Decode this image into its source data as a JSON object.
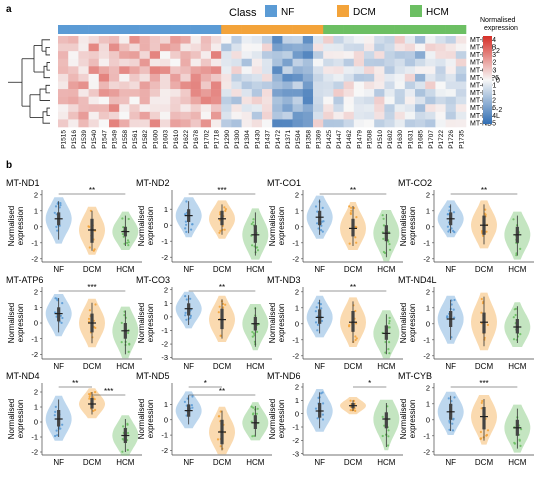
{
  "panel_a": {
    "label": "a",
    "legend": {
      "title": "Class",
      "items": [
        {
          "name": "NF",
          "color": "#5b9bd5"
        },
        {
          "name": "DCM",
          "color": "#f3a33a"
        },
        {
          "name": "HCM",
          "color": "#6cbf63"
        }
      ]
    },
    "colorbar": {
      "title_line1": "Normalised",
      "title_line2": "expression",
      "ticks": [
        "2",
        "0",
        "-2"
      ]
    }
  },
  "panel_b": {
    "label": "b"
  },
  "chart_data": {
    "heatmap": {
      "type": "heatmap",
      "rows": [
        "MT-ND4",
        "MT-CYB",
        "MT-ND3",
        "MT-CO2",
        "MT-CO3",
        "MT-ATP6",
        "MT-CO1",
        "MT-ND1",
        "MT-ND2",
        "MT-ND6",
        "MT-ND4L",
        "MT-ND5"
      ],
      "columns": [
        "P1515",
        "P1516",
        "P1539",
        "P1540",
        "P1547",
        "P1549",
        "P1558",
        "P1561",
        "P1582",
        "P1600",
        "P1603",
        "P1610",
        "P1622",
        "P1678",
        "P1702",
        "P1718",
        "P1290",
        "P1300",
        "P1304",
        "P1430",
        "P1437",
        "P1472",
        "P1371",
        "P1504",
        "P1358",
        "P1369",
        "P1425",
        "P1447",
        "P1462",
        "P1479",
        "P1508",
        "P1510",
        "P1602",
        "P1630",
        "P1631",
        "P1685",
        "P1707",
        "P1722",
        "P1726",
        "P1735"
      ],
      "column_classes": [
        "NF",
        "NF",
        "NF",
        "NF",
        "NF",
        "NF",
        "NF",
        "NF",
        "NF",
        "NF",
        "NF",
        "NF",
        "NF",
        "NF",
        "NF",
        "NF",
        "DCM",
        "DCM",
        "DCM",
        "DCM",
        "DCM",
        "DCM",
        "DCM",
        "DCM",
        "DCM",
        "DCM",
        "HCM",
        "HCM",
        "HCM",
        "HCM",
        "HCM",
        "HCM",
        "HCM",
        "HCM",
        "HCM",
        "HCM",
        "HCM",
        "HCM",
        "HCM",
        "HCM"
      ],
      "value_range": [
        -3,
        3
      ]
    },
    "violins": [
      {
        "type": "violin",
        "title": "MT-ND1",
        "categories": [
          "NF",
          "DCM",
          "HCM"
        ],
        "ylabel": "Normalised expression",
        "ylim": [
          -2.2,
          2.3
        ],
        "yticks": [
          -2,
          -1,
          0,
          1,
          2
        ],
        "medians": [
          0.5,
          -0.2,
          -0.3
        ],
        "q1": [
          0.1,
          -1.0,
          -0.6
        ],
        "q3": [
          0.9,
          0.5,
          0.0
        ],
        "mins": [
          -0.8,
          -1.5,
          -1.2
        ],
        "maxs": [
          1.6,
          1.0,
          0.7
        ],
        "significance": [
          {
            "pair": [
              0,
              2
            ],
            "label": "**"
          }
        ]
      },
      {
        "type": "violin",
        "title": "MT-ND2",
        "categories": [
          "NF",
          "DCM",
          "HCM"
        ],
        "ylabel": "Normalised expression",
        "ylim": [
          -2.3,
          2.2
        ],
        "yticks": [
          -2,
          -1,
          0,
          1
        ],
        "medians": [
          0.6,
          0.4,
          -0.6
        ],
        "q1": [
          0.2,
          0.0,
          -1.1
        ],
        "q3": [
          1.0,
          0.9,
          0.0
        ],
        "mins": [
          -0.5,
          -0.6,
          -1.9
        ],
        "maxs": [
          1.5,
          1.3,
          0.8
        ],
        "significance": [
          {
            "pair": [
              0,
              2
            ],
            "label": "***"
          }
        ]
      },
      {
        "type": "violin",
        "title": "MT-CO1",
        "categories": [
          "NF",
          "DCM",
          "HCM"
        ],
        "ylabel": "Normalised expression",
        "ylim": [
          -2.2,
          2.3
        ],
        "yticks": [
          -2,
          -1,
          0,
          1,
          2
        ],
        "medians": [
          0.6,
          -0.1,
          -0.4
        ],
        "q1": [
          0.1,
          -0.6,
          -0.9
        ],
        "q3": [
          1.0,
          0.5,
          0.1
        ],
        "mins": [
          -0.5,
          -1.2,
          -1.9
        ],
        "maxs": [
          1.7,
          1.3,
          0.8
        ],
        "significance": [
          {
            "pair": [
              0,
              2
            ],
            "label": "**"
          }
        ]
      },
      {
        "type": "violin",
        "title": "MT-CO2",
        "categories": [
          "NF",
          "DCM",
          "HCM"
        ],
        "ylabel": "Normalised expression",
        "ylim": [
          -2.2,
          2.3
        ],
        "yticks": [
          -2,
          -1,
          0,
          1,
          2
        ],
        "medians": [
          0.5,
          0.1,
          -0.5
        ],
        "q1": [
          0.1,
          -0.5,
          -1.0
        ],
        "q3": [
          0.9,
          0.7,
          0.0
        ],
        "mins": [
          -0.4,
          -1.1,
          -1.8
        ],
        "maxs": [
          1.4,
          1.4,
          0.7
        ],
        "significance": [
          {
            "pair": [
              0,
              2
            ],
            "label": "**"
          }
        ]
      },
      {
        "type": "violin",
        "title": "MT-ATP6",
        "categories": [
          "NF",
          "DCM",
          "HCM"
        ],
        "ylabel": "Normalised expression",
        "ylim": [
          -2.3,
          2.3
        ],
        "yticks": [
          -2,
          -1,
          0,
          1,
          2
        ],
        "medians": [
          0.6,
          0.0,
          -0.5
        ],
        "q1": [
          0.1,
          -0.6,
          -1.0
        ],
        "q3": [
          1.0,
          0.6,
          0.0
        ],
        "mins": [
          -0.6,
          -1.3,
          -2.0
        ],
        "maxs": [
          1.6,
          1.3,
          0.8
        ],
        "significance": [
          {
            "pair": [
              0,
              2
            ],
            "label": "***"
          }
        ]
      },
      {
        "type": "violin",
        "title": "MT-CO3",
        "categories": [
          "NF",
          "DCM",
          "HCM"
        ],
        "ylabel": "Normalised expression",
        "ylim": [
          -3.1,
          2.2
        ],
        "yticks": [
          -3,
          -2,
          -1,
          0,
          1,
          2
        ],
        "medians": [
          0.6,
          -0.2,
          -0.5
        ],
        "q1": [
          0.1,
          -0.9,
          -1.0
        ],
        "q3": [
          1.0,
          0.6,
          0.0
        ],
        "mins": [
          -0.6,
          -1.6,
          -2.2
        ],
        "maxs": [
          1.6,
          1.3,
          0.7
        ],
        "significance": [
          {
            "pair": [
              0,
              2
            ],
            "label": "**"
          }
        ]
      },
      {
        "type": "violin",
        "title": "MT-ND3",
        "categories": [
          "NF",
          "DCM",
          "HCM"
        ],
        "ylabel": "Normalised expression",
        "ylim": [
          -2.2,
          2.3
        ],
        "yticks": [
          -2,
          -1,
          0,
          1,
          2
        ],
        "medians": [
          0.4,
          0.1,
          -0.6
        ],
        "q1": [
          0.0,
          -0.5,
          -1.0
        ],
        "q3": [
          0.9,
          0.8,
          -0.1
        ],
        "mins": [
          -0.6,
          -1.2,
          -1.9
        ],
        "maxs": [
          1.5,
          1.4,
          0.6
        ],
        "significance": [
          {
            "pair": [
              0,
              2
            ],
            "label": "**"
          }
        ]
      },
      {
        "type": "violin",
        "title": "MT-ND4L",
        "categories": [
          "NF",
          "DCM",
          "HCM"
        ],
        "ylabel": "Normalised expression",
        "ylim": [
          -2.2,
          2.3
        ],
        "yticks": [
          -2,
          -1,
          0,
          1,
          2
        ],
        "medians": [
          0.3,
          0.1,
          -0.2
        ],
        "q1": [
          -0.2,
          -0.6,
          -0.6
        ],
        "q3": [
          0.8,
          0.7,
          0.3
        ],
        "mins": [
          -1.0,
          -1.4,
          -1.2
        ],
        "maxs": [
          1.5,
          1.7,
          1.1
        ],
        "significance": []
      },
      {
        "type": "violin",
        "title": "MT-ND4",
        "categories": [
          "NF",
          "DCM",
          "HCM"
        ],
        "ylabel": "Normalised expression",
        "ylim": [
          -2.2,
          2.6
        ],
        "yticks": [
          -2,
          -1,
          0,
          1,
          2
        ],
        "medians": [
          0.2,
          1.2,
          -0.9
        ],
        "q1": [
          -0.3,
          0.9,
          -1.4
        ],
        "q3": [
          0.8,
          1.6,
          -0.4
        ],
        "mins": [
          -1.0,
          0.5,
          -2.0
        ],
        "maxs": [
          1.5,
          2.0,
          0.2
        ],
        "significance": [
          {
            "pair": [
              0,
              1
            ],
            "label": "**"
          },
          {
            "pair": [
              1,
              2
            ],
            "label": "***"
          }
        ]
      },
      {
        "type": "violin",
        "title": "MT-ND5",
        "categories": [
          "NF",
          "DCM",
          "HCM"
        ],
        "ylabel": "Normalised expression",
        "ylim": [
          -2.3,
          2.4
        ],
        "yticks": [
          -2,
          -1,
          0,
          1
        ],
        "medians": [
          0.6,
          -0.8,
          -0.2
        ],
        "q1": [
          0.2,
          -1.6,
          -0.6
        ],
        "q3": [
          1.0,
          0.0,
          0.3
        ],
        "mins": [
          -0.3,
          -2.0,
          -1.1
        ],
        "maxs": [
          1.6,
          0.6,
          0.9
        ],
        "significance": [
          {
            "pair": [
              0,
              1
            ],
            "label": "*"
          },
          {
            "pair": [
              0,
              2
            ],
            "label": "**"
          }
        ]
      },
      {
        "type": "violin",
        "title": "MT-ND6",
        "categories": [
          "NF",
          "DCM",
          "HCM"
        ],
        "ylabel": "Normalised expression",
        "ylim": [
          -3.1,
          2.3
        ],
        "yticks": [
          -3,
          -2,
          -1,
          0,
          1,
          2
        ],
        "medians": [
          0.2,
          0.6,
          -0.4
        ],
        "q1": [
          -0.3,
          0.4,
          -1.1
        ],
        "q3": [
          0.8,
          0.8,
          0.1
        ],
        "mins": [
          -1.1,
          0.2,
          -2.5
        ],
        "maxs": [
          1.6,
          1.0,
          0.8
        ],
        "significance": [
          {
            "pair": [
              1,
              2
            ],
            "label": "*"
          }
        ]
      },
      {
        "type": "violin",
        "title": "MT-CYB",
        "categories": [
          "NF",
          "DCM",
          "HCM"
        ],
        "ylabel": "Normalised expression",
        "ylim": [
          -2.2,
          2.3
        ],
        "yticks": [
          -2,
          -1,
          0,
          1,
          2
        ],
        "medians": [
          0.5,
          0.2,
          -0.5
        ],
        "q1": [
          0.0,
          -0.6,
          -1.0
        ],
        "q3": [
          1.0,
          0.8,
          0.0
        ],
        "mins": [
          -0.7,
          -1.3,
          -1.8
        ],
        "maxs": [
          1.5,
          1.3,
          0.7
        ],
        "significance": [
          {
            "pair": [
              0,
              2
            ],
            "label": "***"
          }
        ]
      }
    ]
  }
}
